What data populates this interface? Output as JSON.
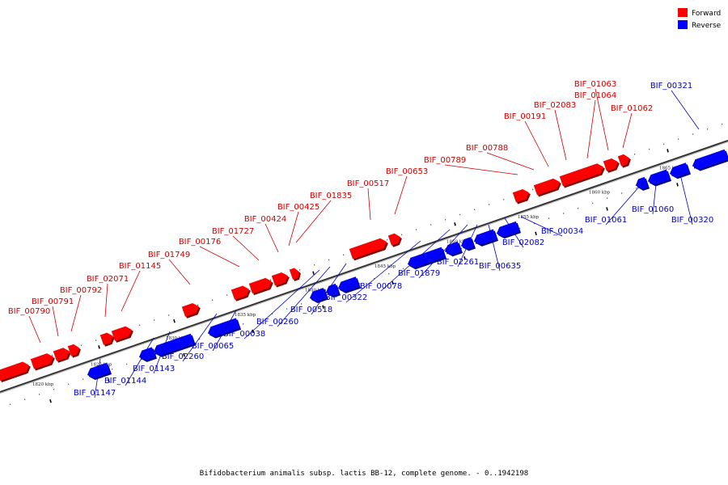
{
  "caption": "Bifidobacterium animalis subsp. lactis BB-12, complete genome. - 0..1942198",
  "legend": [
    {
      "label": "Forward",
      "color": "#ff0000"
    },
    {
      "label": "Reverse",
      "color": "#0000ff"
    }
  ],
  "colors": {
    "forward": "#ff0000",
    "reverse": "#0000ff",
    "label_forward": "#cc0000",
    "label_reverse": "#0000bb",
    "axis": "#666666"
  },
  "ticks": [
    "1820 kbp",
    "1825 kbp",
    "1830 kbp",
    "1835 kbp",
    "1840 kbp",
    "1845 kbp",
    "1850 kbp",
    "1855 kbp",
    "1860 kbp",
    "1865 kbp"
  ],
  "genes_forward": [
    "BIF_00790",
    "BIF_00791",
    "BIF_00792",
    "BIF_02071",
    "BIF_01145",
    "BIF_01749",
    "BIF_00176",
    "BIF_01727",
    "BIF_00424",
    "BIF_00425",
    "BIF_01835",
    "BIF_00517",
    "BIF_00653",
    "BIF_00789",
    "BIF_00788",
    "BIF_00191",
    "BIF_02083",
    "BIF_01064",
    "BIF_01063",
    "BIF_01062"
  ],
  "genes_reverse": [
    "BIF_01147",
    "BIF_01144",
    "BIF_01143",
    "BIF_02260",
    "BIF_00065",
    "BIF_00038",
    "BIF_00260",
    "BIF_00518",
    "BIF_00322",
    "BIF_00078",
    "BIF_01879",
    "BIF_02261",
    "BIF_00635",
    "BIF_02082",
    "BIF_00034",
    "BIF_01061",
    "BIF_01060",
    "BIF_00320",
    "BIF_00321"
  ]
}
